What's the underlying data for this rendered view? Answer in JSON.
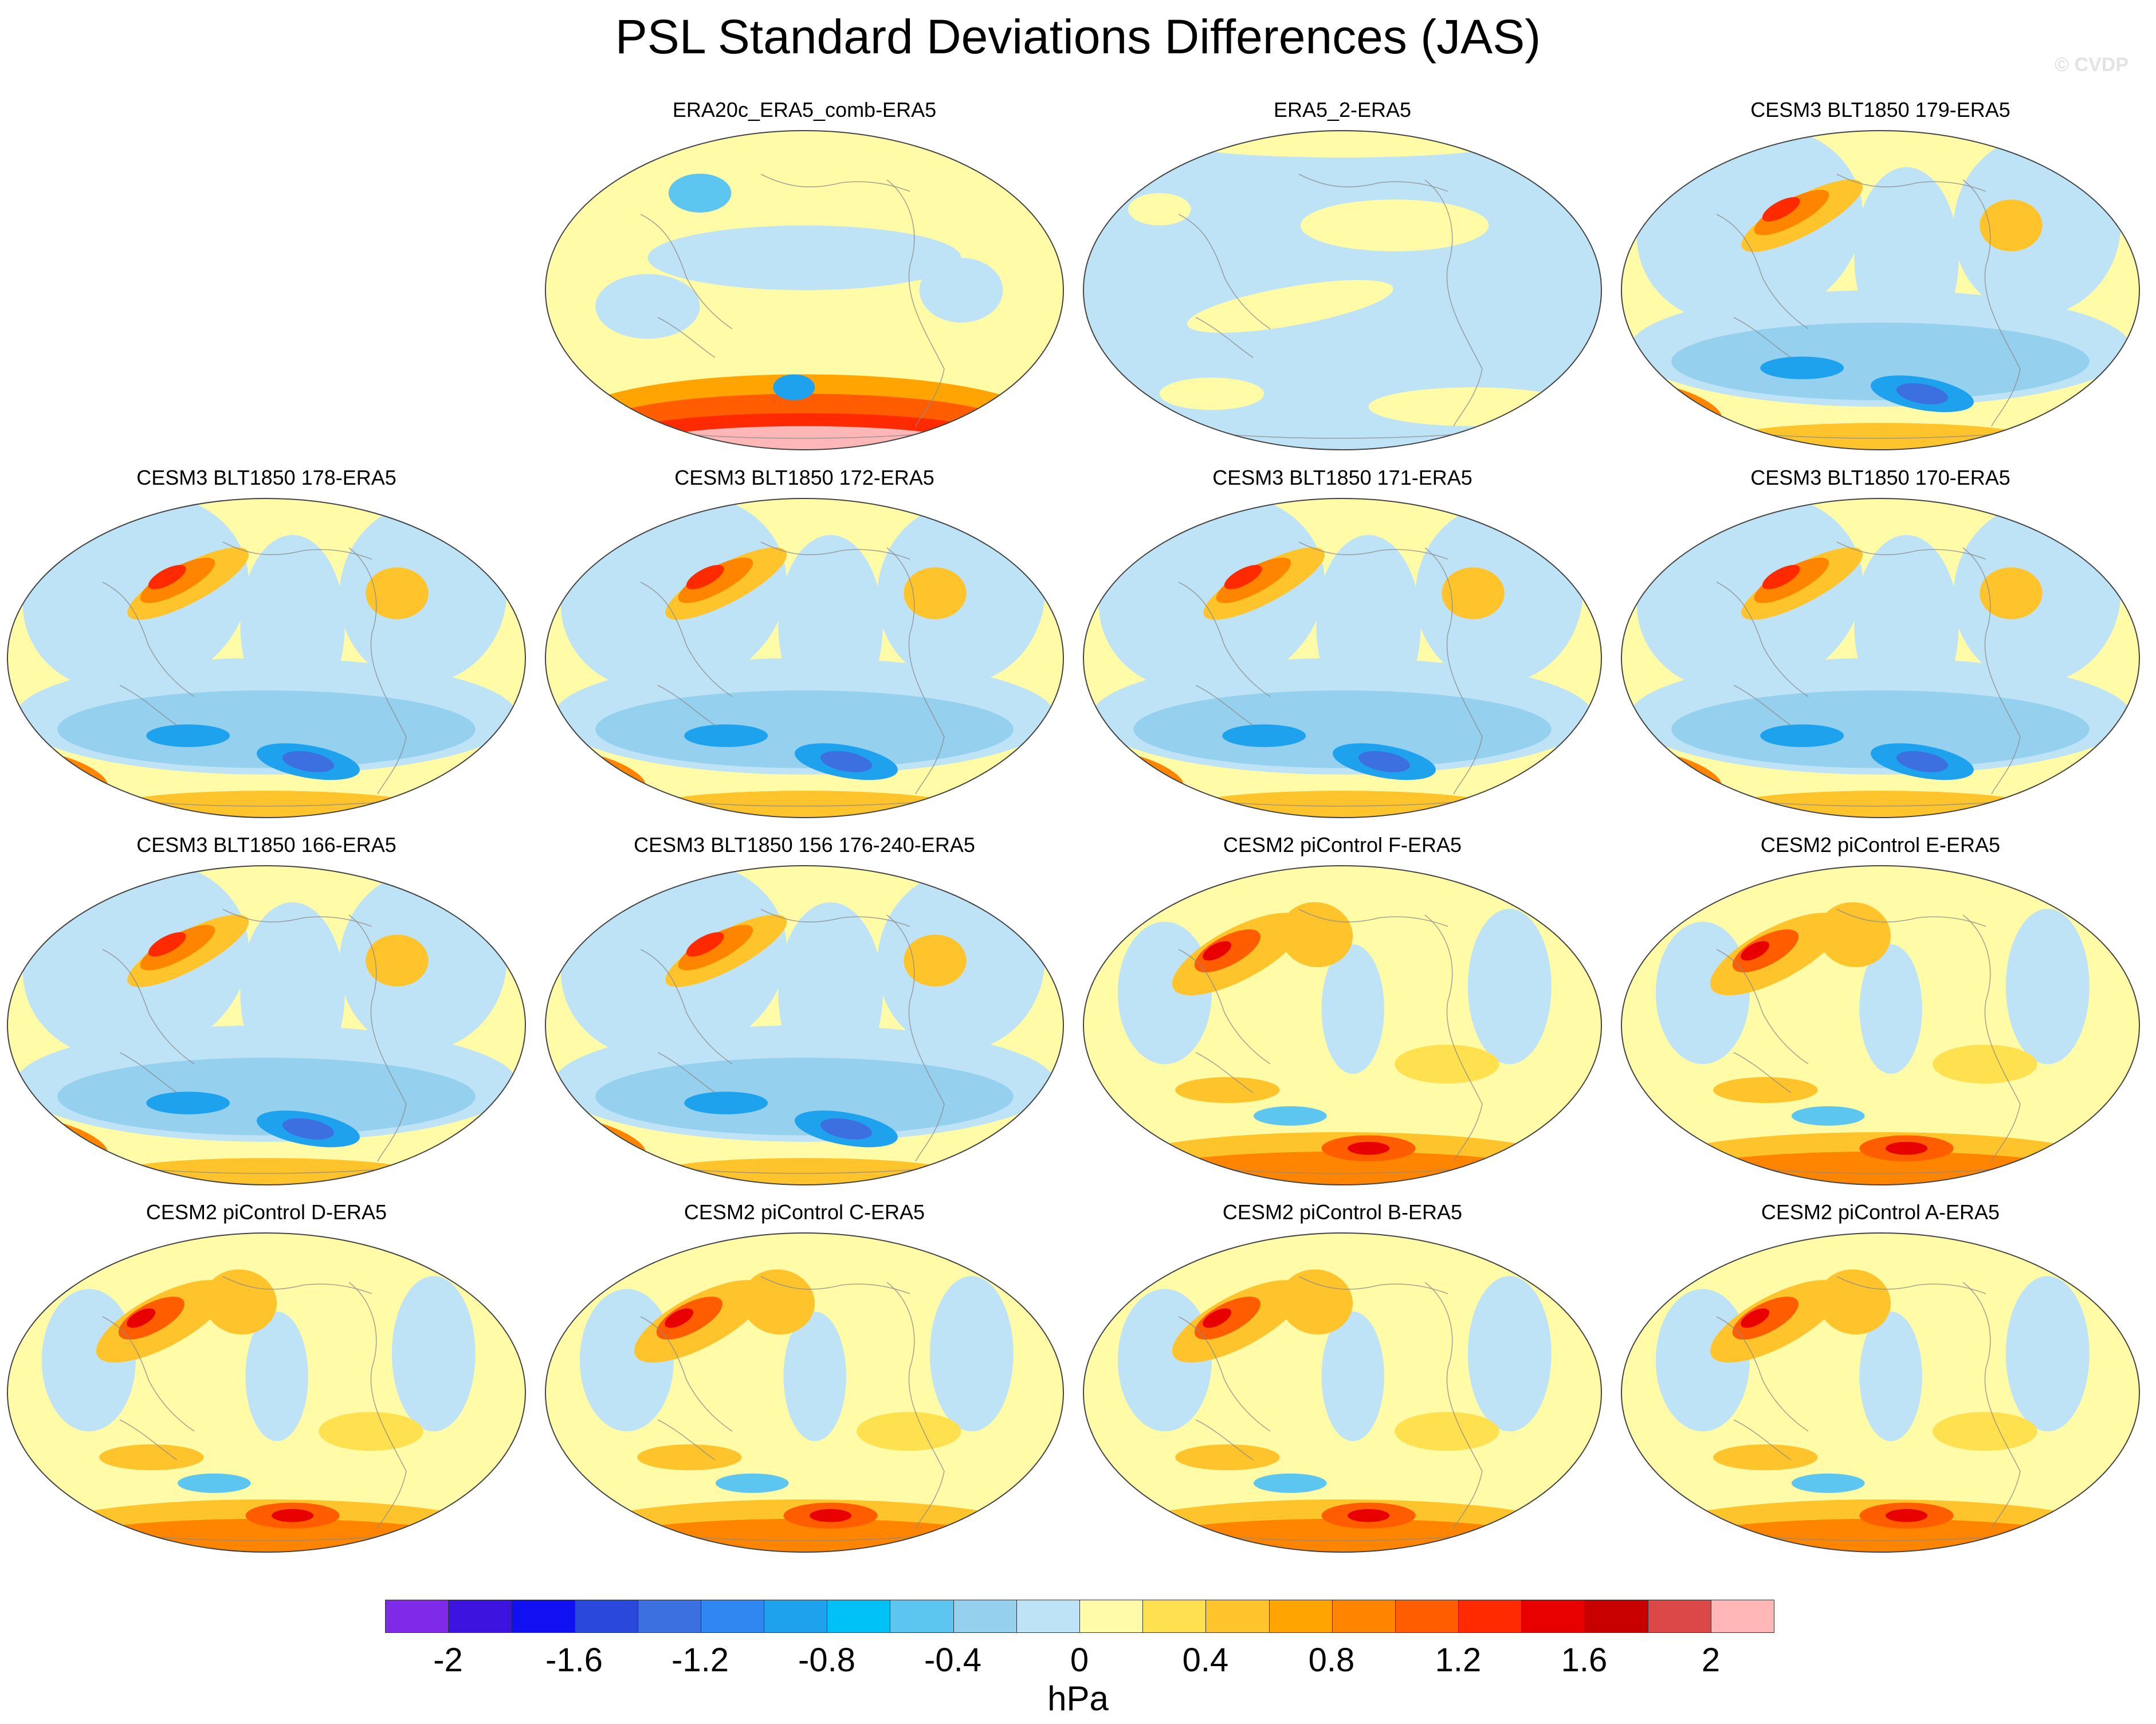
{
  "title": "PSL Standard Deviations Differences (JAS)",
  "watermark": "© CVDP",
  "panels": [
    {
      "label": "ERA20c_ERA5_comb-ERA5",
      "pattern": "era20c"
    },
    {
      "label": "ERA5_2-ERA5",
      "pattern": "era5"
    },
    {
      "label": "CESM3 BLT1850 179-ERA5",
      "pattern": "cesm3"
    },
    {
      "label": "CESM3 BLT1850 178-ERA5",
      "pattern": "cesm3"
    },
    {
      "label": "CESM3 BLT1850 172-ERA5",
      "pattern": "cesm3"
    },
    {
      "label": "CESM3 BLT1850 171-ERA5",
      "pattern": "cesm3"
    },
    {
      "label": "CESM3 BLT1850 170-ERA5",
      "pattern": "cesm3"
    },
    {
      "label": "CESM3 BLT1850 166-ERA5",
      "pattern": "cesm3"
    },
    {
      "label": "CESM3 BLT1850 156 176-240-ERA5",
      "pattern": "cesm3"
    },
    {
      "label": "CESM2 piControl F-ERA5",
      "pattern": "cesm2"
    },
    {
      "label": "CESM2 piControl E-ERA5",
      "pattern": "cesm2"
    },
    {
      "label": "CESM2 piControl D-ERA5",
      "pattern": "cesm2"
    },
    {
      "label": "CESM2 piControl C-ERA5",
      "pattern": "cesm2"
    },
    {
      "label": "CESM2 piControl B-ERA5",
      "pattern": "cesm2"
    },
    {
      "label": "CESM2 piControl A-ERA5",
      "pattern": "cesm2"
    }
  ],
  "colorbar": {
    "unit": "hPa",
    "tick_labels": [
      "-2",
      "-1.6",
      "-1.2",
      "-0.8",
      "-0.4",
      "0",
      "0.4",
      "0.8",
      "1.2",
      "1.6",
      "2"
    ],
    "colors": [
      "#7f2ae8",
      "#3d13e0",
      "#1010f2",
      "#2b48dc",
      "#3c6fe0",
      "#2f87f1",
      "#1fa2ee",
      "#00c1f5",
      "#5cc6f0",
      "#96d0ef",
      "#bfe3f6",
      "#fffba6",
      "#ffe04f",
      "#ffc42c",
      "#ffa400",
      "#ff8500",
      "#ff5d00",
      "#ff2a00",
      "#e80000",
      "#c80000",
      "#dc4848",
      "#ffb6b6"
    ]
  }
}
